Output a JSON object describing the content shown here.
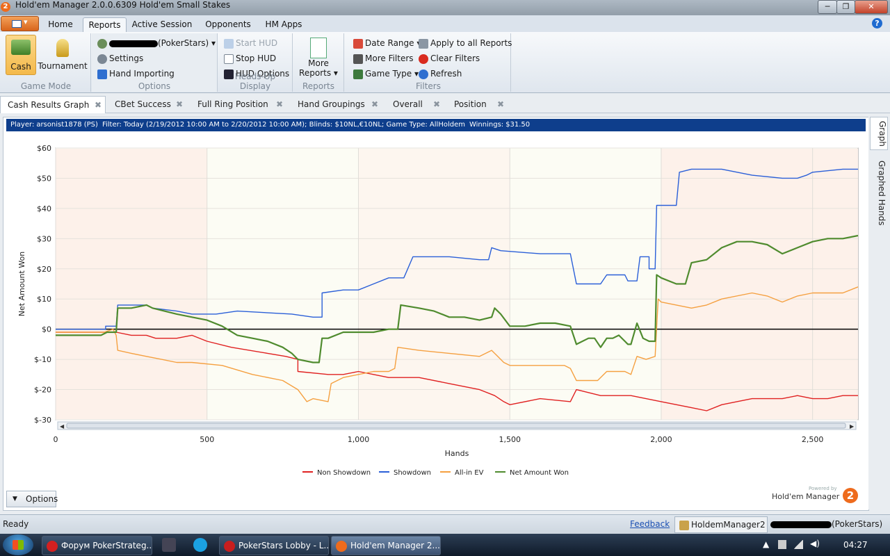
{
  "window": {
    "title": "Hold'em Manager 2.0.0.6309 Hold'em Small Stakes",
    "minimize": "─",
    "restore": "❐",
    "close": "✕"
  },
  "app_logo": "2",
  "ribbon_tabs": [
    "Home",
    "Reports",
    "Active Session",
    "Opponents",
    "HM Apps"
  ],
  "ribbon_active_tab": "Reports",
  "ribbon": {
    "game_mode": {
      "label": "Game Mode",
      "cash": "Cash",
      "tournament": "Tournament"
    },
    "options": {
      "label": "Options",
      "player_suffix": "(PokerStars)",
      "settings": "Settings",
      "hand_importing": "Hand Importing"
    },
    "hud": {
      "label": "Heads-Up Display",
      "start": "Start HUD",
      "stop": "Stop HUD",
      "options": "HUD Options"
    },
    "reports": {
      "label": "Reports",
      "more_line1": "More",
      "more_line2": "Reports"
    },
    "filters": {
      "label": "Filters",
      "date_range": "Date Range",
      "more_filters": "More Filters",
      "game_type": "Game Type",
      "apply_all": "Apply to all Reports",
      "clear": "Clear Filters",
      "refresh": "Refresh"
    }
  },
  "doc_tabs": [
    "Cash Results Graph",
    "CBet Success",
    "Full Ring Position",
    "Hand Groupings",
    "Overall",
    "Position"
  ],
  "filter_bar": {
    "player_label": "Player:",
    "player": "arsonist1878 (PS)",
    "filter_label": "Filter:",
    "filter": "Today (2/19/2012 10:00 AM to 2/20/2012 10:00 AM); Blinds: $10NL,€10NL; Game Type: AllHoldem",
    "winnings_label": "Winnings:",
    "winnings": "$31.50"
  },
  "side_tabs": [
    "Graph",
    "Graphed Hands"
  ],
  "chart_data": {
    "type": "line",
    "xlabel": "Hands",
    "ylabel": "Net Amount Won",
    "xlim": [
      0,
      2650
    ],
    "ylim": [
      -30,
      60
    ],
    "x_ticks": [
      0,
      500,
      1000,
      1500,
      2000,
      2500
    ],
    "x_tick_labels": [
      "0",
      "500",
      "1,000",
      "1,500",
      "2,000",
      "2,500"
    ],
    "y_ticks": [
      -30,
      -20,
      -10,
      0,
      10,
      20,
      30,
      40,
      50,
      60
    ],
    "y_tick_labels": [
      "$-30",
      "$-20",
      "$-10",
      "$0",
      "$10",
      "$20",
      "$30",
      "$40",
      "$50",
      "$60"
    ],
    "legend_position": "bottom",
    "series": [
      {
        "name": "Non Showdown",
        "color": "#e02020",
        "points": [
          [
            0,
            -1
          ],
          [
            150,
            -1
          ],
          [
            200,
            -1
          ],
          [
            250,
            -2
          ],
          [
            300,
            -2
          ],
          [
            330,
            -3
          ],
          [
            400,
            -3
          ],
          [
            450,
            -2
          ],
          [
            500,
            -4
          ],
          [
            580,
            -6
          ],
          [
            700,
            -8
          ],
          [
            760,
            -9
          ],
          [
            800,
            -10
          ],
          [
            800,
            -14
          ],
          [
            900,
            -15
          ],
          [
            950,
            -15
          ],
          [
            1000,
            -14
          ],
          [
            1050,
            -15
          ],
          [
            1100,
            -16
          ],
          [
            1200,
            -16
          ],
          [
            1300,
            -18
          ],
          [
            1400,
            -20
          ],
          [
            1450,
            -22
          ],
          [
            1480,
            -24
          ],
          [
            1500,
            -25
          ],
          [
            1600,
            -23
          ],
          [
            1700,
            -24
          ],
          [
            1720,
            -20
          ],
          [
            1800,
            -22
          ],
          [
            1900,
            -22
          ],
          [
            2000,
            -24
          ],
          [
            2100,
            -26
          ],
          [
            2150,
            -27
          ],
          [
            2200,
            -25
          ],
          [
            2300,
            -23
          ],
          [
            2400,
            -23
          ],
          [
            2450,
            -22
          ],
          [
            2500,
            -23
          ],
          [
            2550,
            -23
          ],
          [
            2600,
            -22
          ],
          [
            2650,
            -22
          ]
        ]
      },
      {
        "name": "Showdown",
        "color": "#2a5fd8",
        "points": [
          [
            0,
            0
          ],
          [
            165,
            0
          ],
          [
            165,
            1
          ],
          [
            200,
            1
          ],
          [
            205,
            8
          ],
          [
            300,
            8
          ],
          [
            320,
            7
          ],
          [
            400,
            6
          ],
          [
            450,
            5
          ],
          [
            530,
            5
          ],
          [
            600,
            6
          ],
          [
            780,
            5
          ],
          [
            850,
            4
          ],
          [
            880,
            4
          ],
          [
            880,
            12
          ],
          [
            950,
            13
          ],
          [
            1000,
            13
          ],
          [
            1050,
            15
          ],
          [
            1100,
            17
          ],
          [
            1150,
            17
          ],
          [
            1180,
            24
          ],
          [
            1300,
            24
          ],
          [
            1400,
            23
          ],
          [
            1430,
            23
          ],
          [
            1440,
            27
          ],
          [
            1470,
            26
          ],
          [
            1600,
            25
          ],
          [
            1700,
            25
          ],
          [
            1720,
            15
          ],
          [
            1800,
            15
          ],
          [
            1820,
            18
          ],
          [
            1880,
            18
          ],
          [
            1890,
            16
          ],
          [
            1920,
            16
          ],
          [
            1930,
            24
          ],
          [
            1960,
            24
          ],
          [
            1960,
            20
          ],
          [
            1980,
            20
          ],
          [
            1985,
            41
          ],
          [
            2020,
            41
          ],
          [
            2050,
            41
          ],
          [
            2060,
            52
          ],
          [
            2100,
            53
          ],
          [
            2200,
            53
          ],
          [
            2300,
            51
          ],
          [
            2400,
            50
          ],
          [
            2450,
            50
          ],
          [
            2480,
            51
          ],
          [
            2500,
            52
          ],
          [
            2600,
            53
          ],
          [
            2650,
            53
          ]
        ]
      },
      {
        "name": "All-in EV",
        "color": "#f5a040",
        "points": [
          [
            0,
            -1
          ],
          [
            160,
            -1
          ],
          [
            190,
            0
          ],
          [
            200,
            -2
          ],
          [
            205,
            -7
          ],
          [
            250,
            -8
          ],
          [
            300,
            -9
          ],
          [
            350,
            -10
          ],
          [
            400,
            -11
          ],
          [
            450,
            -11
          ],
          [
            550,
            -12
          ],
          [
            650,
            -15
          ],
          [
            750,
            -17
          ],
          [
            800,
            -20
          ],
          [
            830,
            -24
          ],
          [
            850,
            -23
          ],
          [
            900,
            -24
          ],
          [
            910,
            -18
          ],
          [
            950,
            -16
          ],
          [
            1000,
            -15
          ],
          [
            1050,
            -14
          ],
          [
            1100,
            -14
          ],
          [
            1120,
            -13
          ],
          [
            1130,
            -6
          ],
          [
            1200,
            -7
          ],
          [
            1300,
            -8
          ],
          [
            1400,
            -9
          ],
          [
            1440,
            -7
          ],
          [
            1460,
            -9
          ],
          [
            1480,
            -11
          ],
          [
            1500,
            -12
          ],
          [
            1600,
            -12
          ],
          [
            1680,
            -12
          ],
          [
            1700,
            -13
          ],
          [
            1720,
            -17
          ],
          [
            1760,
            -17
          ],
          [
            1790,
            -17
          ],
          [
            1800,
            -16
          ],
          [
            1820,
            -14
          ],
          [
            1880,
            -14
          ],
          [
            1900,
            -15
          ],
          [
            1920,
            -9
          ],
          [
            1950,
            -10
          ],
          [
            1980,
            -9
          ],
          [
            1990,
            10
          ],
          [
            2000,
            9
          ],
          [
            2100,
            7
          ],
          [
            2150,
            8
          ],
          [
            2200,
            10
          ],
          [
            2300,
            12
          ],
          [
            2350,
            11
          ],
          [
            2400,
            9
          ],
          [
            2450,
            11
          ],
          [
            2500,
            12
          ],
          [
            2550,
            12
          ],
          [
            2600,
            12
          ],
          [
            2650,
            14
          ]
        ]
      },
      {
        "name": "Net Amount Won",
        "color": "#4f8b2e",
        "points": [
          [
            0,
            -2
          ],
          [
            100,
            -2
          ],
          [
            150,
            -2
          ],
          [
            170,
            -1
          ],
          [
            200,
            -1
          ],
          [
            205,
            7
          ],
          [
            250,
            7
          ],
          [
            300,
            8
          ],
          [
            320,
            7
          ],
          [
            400,
            5
          ],
          [
            450,
            4
          ],
          [
            500,
            3
          ],
          [
            550,
            1
          ],
          [
            600,
            -2
          ],
          [
            650,
            -3
          ],
          [
            700,
            -4
          ],
          [
            750,
            -6
          ],
          [
            780,
            -8
          ],
          [
            800,
            -10
          ],
          [
            850,
            -11
          ],
          [
            870,
            -11
          ],
          [
            880,
            -3
          ],
          [
            900,
            -3
          ],
          [
            950,
            -1
          ],
          [
            1000,
            -1
          ],
          [
            1050,
            -1
          ],
          [
            1100,
            0
          ],
          [
            1130,
            0
          ],
          [
            1140,
            8
          ],
          [
            1200,
            7
          ],
          [
            1250,
            6
          ],
          [
            1300,
            4
          ],
          [
            1350,
            4
          ],
          [
            1400,
            3
          ],
          [
            1440,
            4
          ],
          [
            1450,
            7
          ],
          [
            1470,
            5
          ],
          [
            1500,
            1
          ],
          [
            1550,
            1
          ],
          [
            1600,
            2
          ],
          [
            1650,
            2
          ],
          [
            1700,
            1
          ],
          [
            1720,
            -5
          ],
          [
            1760,
            -3
          ],
          [
            1780,
            -3
          ],
          [
            1800,
            -6
          ],
          [
            1820,
            -3
          ],
          [
            1840,
            -3
          ],
          [
            1860,
            -2
          ],
          [
            1880,
            -4
          ],
          [
            1890,
            -5
          ],
          [
            1900,
            -5
          ],
          [
            1920,
            2
          ],
          [
            1940,
            -3
          ],
          [
            1960,
            -4
          ],
          [
            1980,
            -4
          ],
          [
            1985,
            18
          ],
          [
            2000,
            17
          ],
          [
            2050,
            15
          ],
          [
            2080,
            15
          ],
          [
            2100,
            22
          ],
          [
            2150,
            23
          ],
          [
            2200,
            27
          ],
          [
            2250,
            29
          ],
          [
            2300,
            29
          ],
          [
            2350,
            28
          ],
          [
            2400,
            25
          ],
          [
            2450,
            27
          ],
          [
            2500,
            29
          ],
          [
            2550,
            30
          ],
          [
            2600,
            30
          ],
          [
            2650,
            31
          ]
        ]
      }
    ]
  },
  "chart_footer": {
    "options": "Options",
    "powered_by": "Powered by",
    "brand": "Hold'em Manager",
    "brand_logo": "2"
  },
  "status_bar": {
    "ready": "Ready",
    "feedback": "Feedback",
    "database": "HoldemManager2",
    "player_suffix": "(PokerStars)"
  },
  "taskbar": {
    "items": [
      "Форум PokerStrateg...",
      "PokerStars Lobby - L...",
      "Hold'em Manager 2...."
    ],
    "clock": "04:27"
  }
}
